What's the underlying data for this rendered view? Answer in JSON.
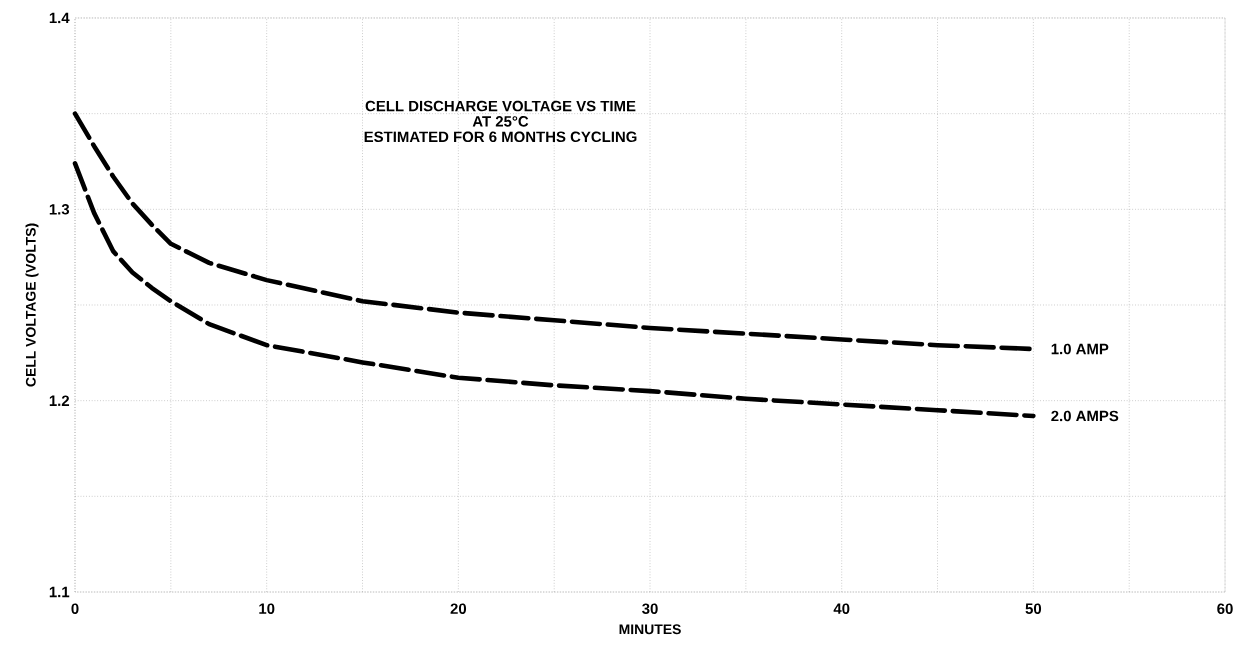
{
  "chart_data": {
    "type": "line",
    "title": "CELL DISCHARGE VOLTAGE VS TIME",
    "subtitle": "AT 25°C",
    "annotations": [
      "ESTIMATED FOR 6 MONTHS CYCLING"
    ],
    "xlabel": "MINUTES",
    "ylabel": "CELL VOLTAGE (VOLTS)",
    "x": [
      0,
      1,
      2,
      3,
      4,
      5,
      7,
      10,
      15,
      20,
      25,
      30,
      35,
      40,
      45,
      50
    ],
    "series": [
      {
        "name": "1.0 AMP",
        "color": "#000000",
        "values": [
          1.35,
          1.333,
          1.317,
          1.303,
          1.292,
          1.282,
          1.272,
          1.263,
          1.252,
          1.246,
          1.242,
          1.238,
          1.235,
          1.232,
          1.229,
          1.227
        ]
      },
      {
        "name": "2.0 AMPS",
        "color": "#000000",
        "values": [
          1.324,
          1.298,
          1.278,
          1.267,
          1.259,
          1.252,
          1.24,
          1.229,
          1.22,
          1.212,
          1.208,
          1.205,
          1.201,
          1.198,
          1.195,
          1.192
        ]
      }
    ],
    "xlim": [
      0,
      60
    ],
    "ylim": [
      1.1,
      1.4
    ],
    "xticks": [
      0,
      {
        "value": 5,
        "label": null
      },
      10,
      {
        "value": 15,
        "label": null
      },
      20,
      {
        "value": 25,
        "label": null
      },
      30,
      {
        "value": 35,
        "label": null
      },
      40,
      {
        "value": 45,
        "label": null
      },
      50,
      {
        "value": 55,
        "label": null
      },
      60
    ],
    "yticks": [
      1.1,
      {
        "value": 1.15,
        "label": null
      },
      1.2,
      {
        "value": 1.25,
        "label": null
      },
      1.3,
      {
        "value": 1.35,
        "label": null
      },
      1.4
    ],
    "grid": true,
    "line_style": "dashed"
  }
}
